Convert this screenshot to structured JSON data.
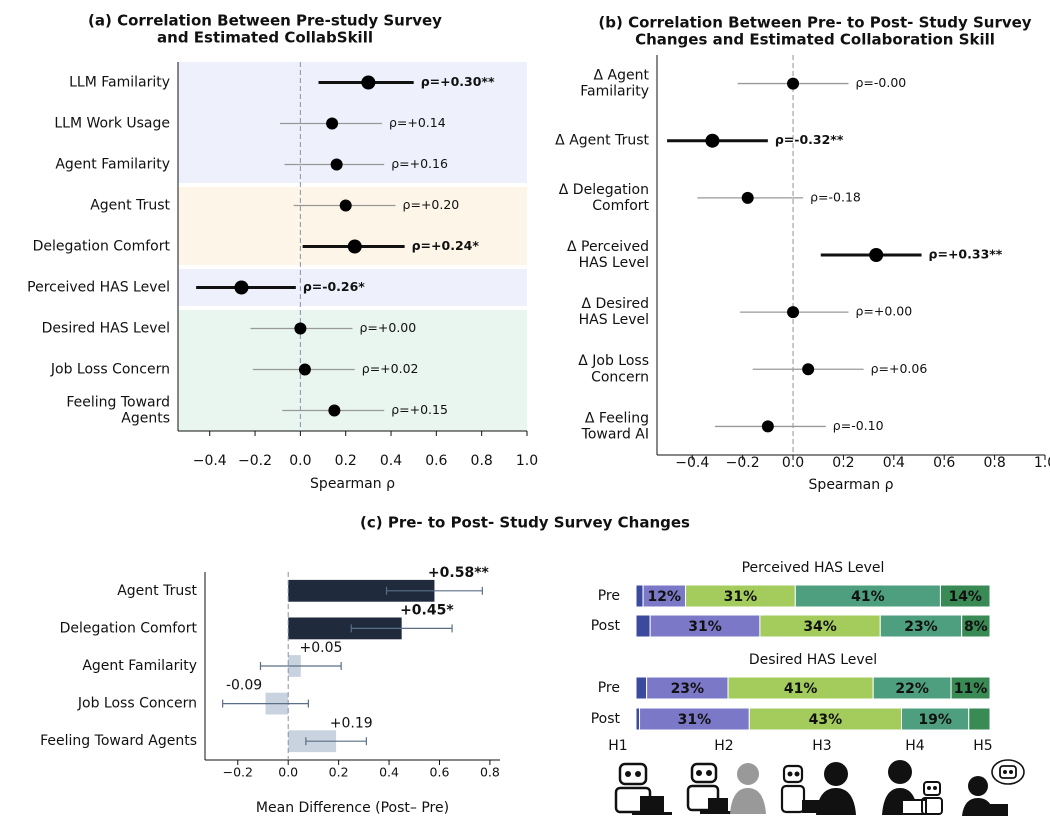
{
  "chart_data": [
    {
      "type": "forest",
      "title": "(a) Correlation Between Pre-study Survey\nand Estimated CollabSkill",
      "xlabel": "Spearman ρ",
      "categories": [
        "LLM Familarity",
        "LLM Work Usage",
        "Agent Familarity",
        "Agent Trust",
        "Delegation Comfort",
        "Perceived HAS Level",
        "Desired HAS Level",
        "Job Loss Concern",
        "Feeling Toward\nAgents"
      ],
      "values": [
        0.3,
        0.14,
        0.16,
        0.2,
        0.24,
        -0.26,
        0.0,
        0.02,
        0.15
      ],
      "ci_low": [
        0.08,
        -0.09,
        -0.07,
        -0.03,
        0.01,
        -0.46,
        -0.22,
        -0.21,
        -0.08
      ],
      "ci_high": [
        0.5,
        0.36,
        0.37,
        0.42,
        0.46,
        -0.02,
        0.23,
        0.24,
        0.37
      ],
      "value_labels": [
        "ρ=+0.30**",
        "ρ=+0.14",
        "ρ=+0.16",
        "ρ=+0.20",
        "ρ=+0.24*",
        "ρ=-0.26*",
        "ρ=+0.00",
        "ρ=+0.02",
        "ρ=+0.15"
      ],
      "significant": [
        true,
        false,
        false,
        false,
        true,
        true,
        false,
        false,
        false
      ],
      "band_colors": [
        "#eef1fb",
        "#eef1fb",
        "#eef1fb",
        "#fdf5e8",
        "#fdf5e8",
        "#eef1fb",
        "#e9f5ef",
        "#e9f5ef",
        "#e9f5ef"
      ],
      "xlim": [
        -0.54,
        1.0
      ],
      "xticks": [
        {
          "value": -0.4,
          "label": "−0.4"
        },
        {
          "value": -0.2,
          "label": "−0.2"
        },
        {
          "value": 0,
          "label": "0.0"
        },
        0.2,
        0.4,
        0.6,
        0.8,
        {
          "value": 1,
          "label": "1.0"
        }
      ]
    },
    {
      "type": "forest",
      "title": "(b) Correlation Between Pre- to Post- Study Survey\nChanges and Estimated Collaboration Skill",
      "xlabel": "Spearman ρ",
      "categories": [
        "Δ Agent\nFamilarity",
        "Δ Agent Trust",
        "Δ Delegation\nComfort",
        "Δ Perceived\nHAS Level",
        "Δ Desired\nHAS Level",
        "Δ Job Loss\nConcern",
        "Δ Feeling\nToward AI"
      ],
      "values": [
        0.0,
        -0.32,
        -0.18,
        0.33,
        0.0,
        0.06,
        -0.1
      ],
      "ci_low": [
        -0.22,
        -0.5,
        -0.38,
        0.11,
        -0.21,
        -0.16,
        -0.31
      ],
      "ci_high": [
        0.22,
        -0.1,
        0.04,
        0.51,
        0.22,
        0.28,
        0.13
      ],
      "value_labels": [
        "ρ=-0.00",
        "ρ=-0.32**",
        "ρ=-0.18",
        "ρ=+0.33**",
        "ρ=+0.00",
        "ρ=+0.06",
        "ρ=-0.10"
      ],
      "significant": [
        false,
        true,
        false,
        true,
        false,
        false,
        false
      ],
      "xlim": [
        -0.54,
        1.0
      ],
      "xticks": [
        {
          "value": -0.4,
          "label": "−0.4"
        },
        {
          "value": -0.2,
          "label": "−0.2"
        },
        {
          "value": 0,
          "label": "0.0"
        },
        0.2,
        0.4,
        0.6,
        0.8,
        {
          "value": 1,
          "label": "1.0"
        }
      ]
    },
    {
      "type": "barh",
      "title": "(c) Pre- to Post- Study Survey Changes",
      "xlabel": "Mean Difference (Post– Pre)",
      "categories": [
        "Agent Trust",
        "Delegation Comfort",
        "Agent Familarity",
        "Job Loss Concern",
        "Feeling Toward Agents"
      ],
      "values": [
        0.58,
        0.45,
        0.05,
        -0.09,
        0.19
      ],
      "errors": [
        0.19,
        0.2,
        0.16,
        0.17,
        0.12
      ],
      "value_labels": [
        "+0.58**",
        "+0.45*",
        "+0.05",
        "-0.09",
        "+0.19"
      ],
      "significant": [
        true,
        true,
        false,
        false,
        false
      ],
      "colors": [
        "#1f2a3c",
        "#1f2a3c",
        "#c9d3e0",
        "#c9d3e0",
        "#c9d3e0"
      ],
      "xlim": [
        -0.33,
        0.84
      ],
      "xticks": [
        {
          "value": -0.2,
          "label": "−0.2"
        },
        {
          "value": 0,
          "label": "0.0"
        },
        0.2,
        0.4,
        0.6,
        0.8
      ]
    },
    {
      "type": "stacked_barh",
      "xlim": [
        0,
        100
      ],
      "series": [
        {
          "name": "H1",
          "color": "#3b4a9e"
        },
        {
          "name": "H2",
          "color": "#7b78c8"
        },
        {
          "name": "H3",
          "color": "#a3cc5c"
        },
        {
          "name": "H4",
          "color": "#4e9f80"
        },
        {
          "name": "H5",
          "color": "#3a8a55"
        }
      ],
      "panels": [
        {
          "title": "Perceived HAS Level",
          "categories": [
            "Pre",
            "Post"
          ],
          "values": [
            [
              2,
              12,
              31,
              41,
              14
            ],
            [
              4,
              31,
              34,
              23,
              8
            ]
          ],
          "value_labels": [
            [
              null,
              "12%",
              "31%",
              "41%",
              "14%"
            ],
            [
              null,
              "31%",
              "34%",
              "23%",
              "8%"
            ]
          ]
        },
        {
          "title": "Desired HAS Level",
          "categories": [
            "Pre",
            "Post"
          ],
          "values": [
            [
              3,
              23,
              41,
              22,
              11
            ],
            [
              1,
              31,
              43,
              19,
              6
            ]
          ],
          "value_labels": [
            [
              null,
              "23%",
              "41%",
              "22%",
              "11%"
            ],
            [
              null,
              "31%",
              "43%",
              "19%",
              null
            ]
          ]
        }
      ]
    }
  ]
}
